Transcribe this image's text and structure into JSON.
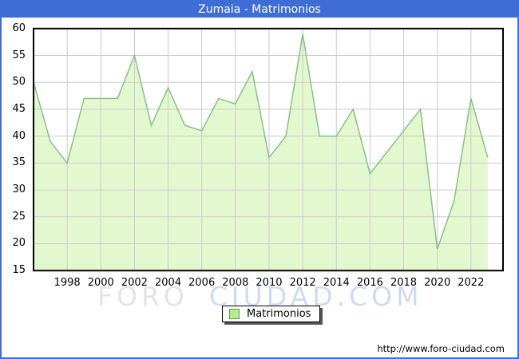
{
  "window": {
    "title": "Zumaia - Matrimonios"
  },
  "chart_data": {
    "type": "area",
    "title": "Zumaia - Matrimonios",
    "series_name": "Matrimonios",
    "x": [
      1996,
      1997,
      1998,
      1999,
      2000,
      2001,
      2002,
      2003,
      2004,
      2005,
      2006,
      2007,
      2008,
      2009,
      2010,
      2011,
      2012,
      2013,
      2014,
      2015,
      2016,
      2017,
      2018,
      2019,
      2020,
      2021,
      2022,
      2023
    ],
    "values": [
      50,
      39,
      35,
      47,
      47,
      47,
      55,
      42,
      49,
      42,
      41,
      47,
      46,
      52,
      36,
      40,
      59,
      40,
      40,
      45,
      33,
      37,
      41,
      45,
      19,
      28,
      47,
      36
    ],
    "ylim": [
      15,
      60
    ],
    "yticks": [
      60,
      55,
      50,
      45,
      40,
      35,
      30,
      25,
      20,
      15
    ],
    "xticks": [
      1998,
      2000,
      2002,
      2004,
      2006,
      2008,
      2010,
      2012,
      2014,
      2016,
      2018,
      2020,
      2022
    ],
    "grid": true,
    "legend_position": "bottom-center",
    "fill_color": "#E4F8CF",
    "line_color": "#88C088"
  },
  "legend": {
    "label": "Matrimonios",
    "swatch_fill": "#B5EC8B",
    "swatch_border": "#5DA054"
  },
  "watermark": {
    "part1": "FORO",
    "part2": "CIUDAD.COM"
  },
  "footer": {
    "url": "http://www.foro-ciudad.com"
  },
  "colors": {
    "titlebar": "#3E6DD6",
    "title_text": "#FFFFFF",
    "grid": "#CBCBCB",
    "plot_border": "#000000",
    "watermark_gray": "#E4E4E4",
    "watermark_blue": "#CFDAF3"
  }
}
